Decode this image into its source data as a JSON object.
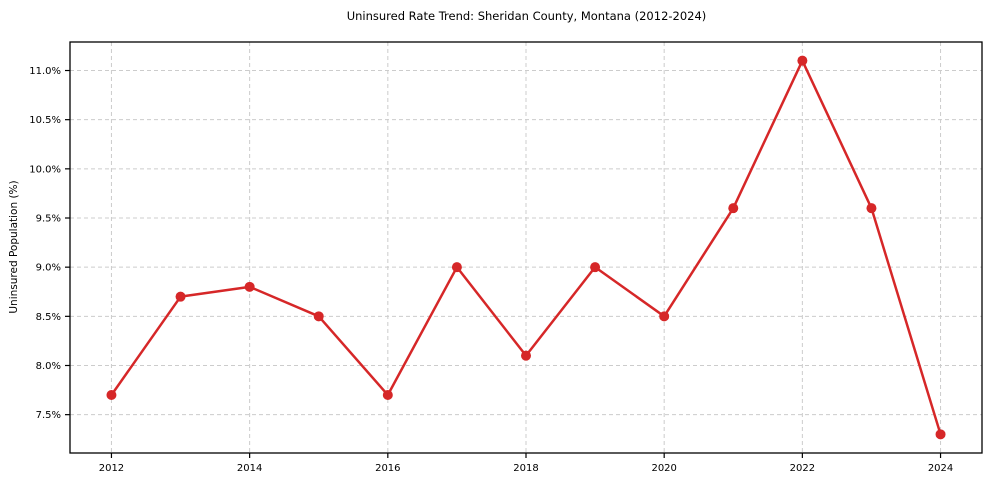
{
  "chart_data": {
    "type": "line",
    "title": "Uninsured Rate Trend: Sheridan County, Montana (2012-2024)",
    "xlabel": "",
    "ylabel": "Uninsured Population (%)",
    "series": [
      {
        "name": "Uninsured Rate",
        "x": [
          2012,
          2013,
          2014,
          2015,
          2016,
          2017,
          2018,
          2019,
          2020,
          2021,
          2022,
          2023,
          2024
        ],
        "values": [
          7.7,
          8.7,
          8.8,
          8.5,
          7.7,
          9.0,
          8.1,
          9.0,
          8.5,
          9.6,
          11.1,
          9.6,
          7.3
        ]
      }
    ],
    "xlim": [
      2011.4,
      2024.6
    ],
    "ylim": [
      7.11,
      11.29
    ],
    "xticks": [
      2012,
      2014,
      2016,
      2018,
      2020,
      2022,
      2024
    ],
    "xtick_labels": [
      "2012",
      "2014",
      "2016",
      "2018",
      "2020",
      "2022",
      "2024"
    ],
    "yticks": [
      7.5,
      8.0,
      8.5,
      9.0,
      9.5,
      10.0,
      10.5,
      11.0
    ],
    "ytick_labels": [
      "7.5%",
      "8.0%",
      "8.5%",
      "9.0%",
      "9.5%",
      "10.0%",
      "10.5%",
      "11.0%"
    ],
    "grid": true,
    "legend": false,
    "colors": {
      "line": "#d62728",
      "marker": "#d62728",
      "grid": "#cccccc",
      "spine": "#000000",
      "text": "#000000",
      "background": "#ffffff"
    },
    "marker_style": "circle",
    "line_width": 2.5,
    "marker_radius": 5
  }
}
